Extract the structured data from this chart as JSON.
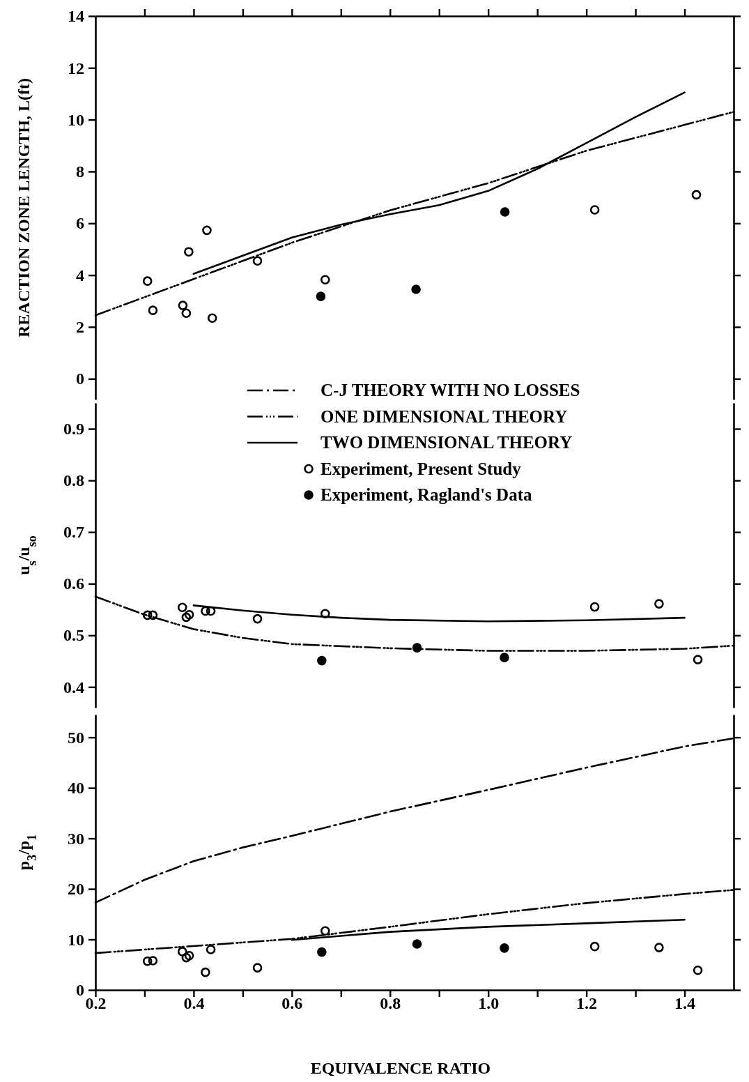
{
  "chart_data": [
    {
      "type": "line",
      "ylabel": "REACTION ZONE LENGTH, L(ft)",
      "xlim": [
        0.2,
        1.5
      ],
      "xticks": [
        0.3,
        0.4,
        0.5,
        0.6,
        0.7,
        0.8,
        0.9,
        1.0,
        1.1,
        1.2,
        1.3,
        1.4
      ],
      "ylim": [
        -0.8,
        14
      ],
      "yticks": [
        0,
        2,
        4,
        6,
        8,
        10,
        12,
        14
      ],
      "tick_labels": "y",
      "grid": false,
      "series": [
        {
          "type": "line",
          "color": "#000000",
          "line_style": "dotted",
          "x": [
            0.2,
            0.4,
            0.6,
            0.8,
            1.0,
            1.2,
            1.4,
            1.5
          ],
          "values": [
            2.45,
            3.85,
            5.25,
            6.5,
            7.55,
            8.8,
            9.8,
            10.3
          ]
        },
        {
          "type": "line",
          "color": "#000000",
          "line_style": "solid",
          "x": [
            0.4,
            0.5,
            0.6,
            0.7,
            0.8,
            0.9,
            1.0,
            1.1,
            1.2,
            1.3,
            1.4
          ],
          "values": [
            4.05,
            4.75,
            5.45,
            5.95,
            6.35,
            6.7,
            7.25,
            8.1,
            9.1,
            10.1,
            11.05
          ]
        },
        {
          "type": "scatter",
          "color": "#000000",
          "marker": "circle",
          "x": [
            0.306,
            0.317,
            0.378,
            0.385,
            0.39,
            0.427,
            0.438,
            0.53,
            0.668,
            1.217,
            1.424
          ],
          "values": [
            3.77,
            2.64,
            2.83,
            2.53,
            4.9,
            5.73,
            2.34,
            4.55,
            3.82,
            6.52,
            7.1
          ]
        },
        {
          "type": "scatter",
          "color": "#000000",
          "marker": "circle",
          "x": [
            0.659,
            0.853,
            1.034
          ],
          "values": [
            3.18,
            3.45,
            6.44
          ]
        }
      ]
    },
    {
      "type": "line",
      "ylabel": "u$_{s}$/u$_{so}$",
      "xlim": [
        0.2,
        1.5
      ],
      "ylim": [
        0.36,
        0.95
      ],
      "yticks": [
        0.4,
        0.5,
        0.6,
        0.7,
        0.8,
        0.9
      ],
      "tick_labels": "y",
      "grid": false,
      "series": [
        {
          "type": "line",
          "color": "#000000",
          "line_style": "dotted",
          "x": [
            0.2,
            0.3,
            0.4,
            0.5,
            0.6,
            0.8,
            1.0,
            1.2,
            1.4,
            1.5
          ],
          "values": [
            0.575,
            0.54,
            0.512,
            0.495,
            0.483,
            0.475,
            0.47,
            0.47,
            0.474,
            0.48
          ]
        },
        {
          "type": "line",
          "color": "#000000",
          "line_style": "solid",
          "x": [
            0.4,
            0.5,
            0.6,
            0.7,
            0.8,
            1.0,
            1.2,
            1.4
          ],
          "values": [
            0.558,
            0.548,
            0.54,
            0.534,
            0.53,
            0.527,
            0.529,
            0.534
          ]
        },
        {
          "type": "scatter",
          "color": "#000000",
          "marker": "circle",
          "x": [
            0.306,
            0.317,
            0.377,
            0.385,
            0.391,
            0.424,
            0.435,
            0.53,
            0.668,
            1.217,
            1.348,
            1.427
          ],
          "values": [
            0.539,
            0.539,
            0.554,
            0.535,
            0.54,
            0.547,
            0.547,
            0.532,
            0.542,
            0.555,
            0.561,
            0.453
          ]
        },
        {
          "type": "scatter",
          "color": "#000000",
          "marker": "circle",
          "x": [
            0.661,
            0.855,
            1.033
          ],
          "values": [
            0.451,
            0.476,
            0.457
          ]
        }
      ]
    },
    {
      "type": "line",
      "xlabel": "EQUIVALENCE RATIO",
      "ylabel": "p$_{3}$/p$_{1}$",
      "xlim": [
        0.2,
        1.5
      ],
      "xticks": [
        0.2,
        {
          "value": 0.3,
          "label": null
        },
        0.4,
        {
          "value": 0.5,
          "label": null
        },
        0.6,
        {
          "value": 0.7,
          "label": null
        },
        0.8,
        {
          "value": 0.9,
          "label": null
        },
        {
          "value": 1.0,
          "label": "1.0"
        },
        {
          "value": 1.1,
          "label": null
        },
        1.2,
        {
          "value": 1.3,
          "label": null
        },
        1.4
      ],
      "ylim": [
        0,
        54.5
      ],
      "yticks": [
        0,
        10,
        20,
        30,
        40,
        50
      ],
      "grid": false,
      "legend": "top",
      "series": [
        {
          "type": "line",
          "name": "C-J THEORY WITH NO LOSSES",
          "color": "#000000",
          "line_style": "dashed",
          "x": [
            0.2,
            0.3,
            0.4,
            0.5,
            0.6,
            0.8,
            1.0,
            1.2,
            1.4,
            1.5
          ],
          "values": [
            17.3,
            21.8,
            25.5,
            28.2,
            30.5,
            35.3,
            39.6,
            44.0,
            48.2,
            49.8
          ]
        },
        {
          "type": "line",
          "name": "ONE DIMENSIONAL THEORY",
          "color": "#000000",
          "line_style": "dotted",
          "x": [
            0.2,
            0.4,
            0.6,
            0.8,
            1.0,
            1.2,
            1.4,
            1.5
          ],
          "values": [
            7.3,
            8.7,
            10.1,
            12.5,
            15.0,
            17.2,
            19.0,
            19.8
          ]
        },
        {
          "type": "line",
          "name": "TWO DIMENSIONAL THEORY",
          "color": "#000000",
          "line_style": "solid",
          "x": [
            0.6,
            0.8,
            1.0,
            1.2,
            1.4
          ],
          "values": [
            9.9,
            11.5,
            12.5,
            13.2,
            13.9
          ]
        },
        {
          "type": "scatter",
          "name": "Experiment,  Present Study",
          "color": "#000000",
          "marker": "circle",
          "x": [
            0.306,
            0.317,
            0.377,
            0.385,
            0.391,
            0.424,
            0.435,
            0.53,
            0.668,
            1.217,
            1.348,
            1.427
          ],
          "values": [
            5.7,
            5.8,
            7.6,
            6.4,
            6.8,
            3.5,
            8.0,
            4.4,
            11.7,
            8.6,
            8.4,
            3.9
          ]
        },
        {
          "type": "scatter",
          "name": "Experiment,  Ragland's Data",
          "color": "#000000",
          "marker": "circle",
          "x": [
            0.661,
            0.855,
            1.033
          ],
          "values": [
            7.5,
            9.1,
            8.3
          ]
        }
      ]
    }
  ]
}
